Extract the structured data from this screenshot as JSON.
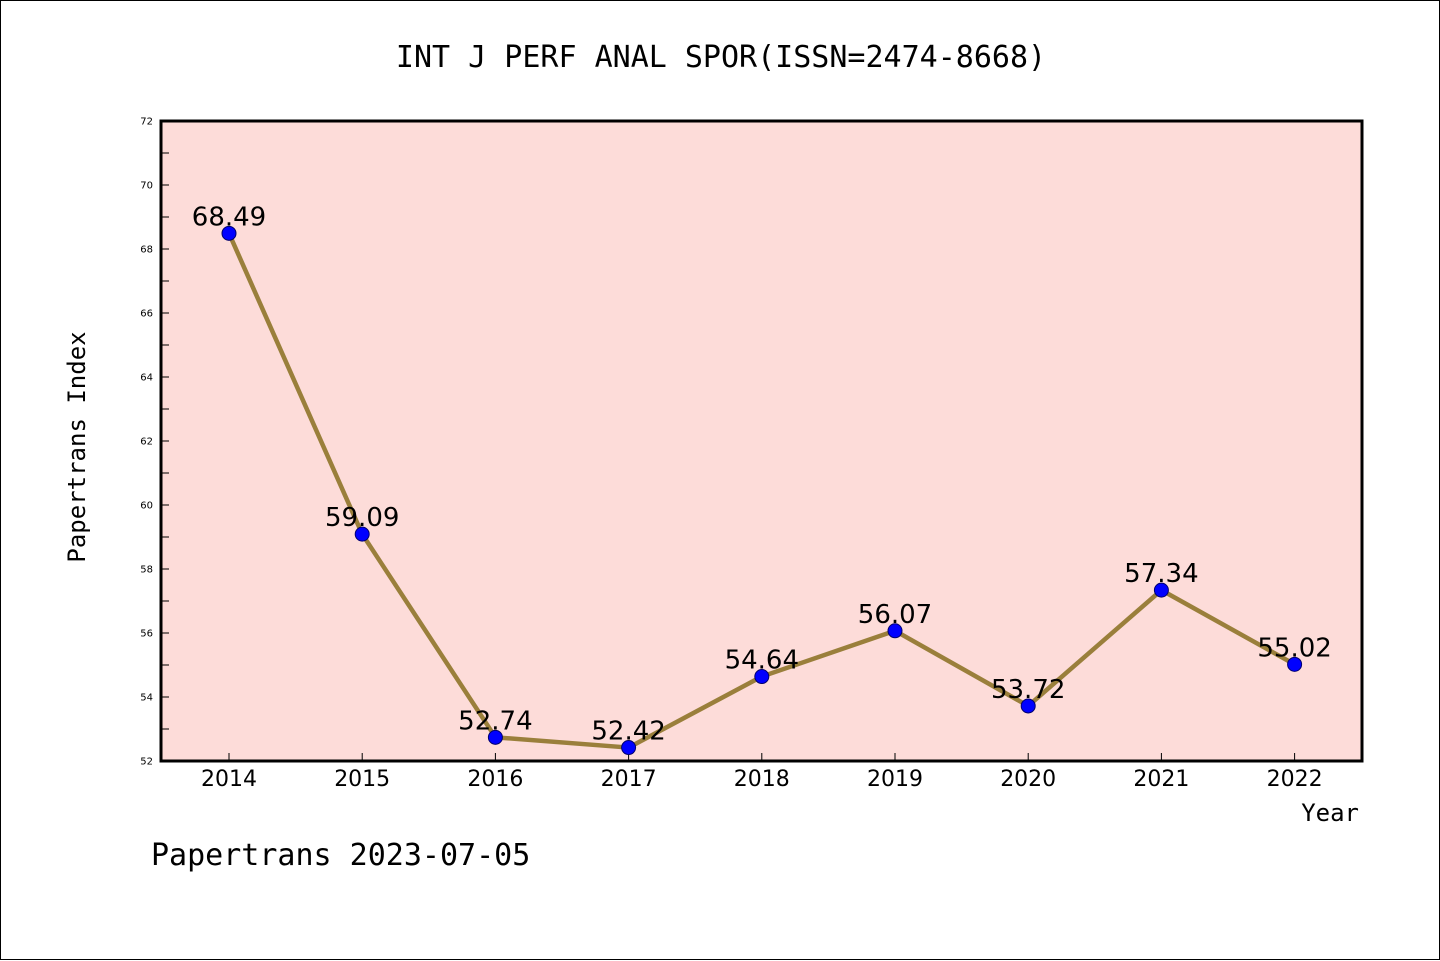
{
  "chart_data": {
    "type": "line",
    "title": "INT J PERF ANAL SPOR(ISSN=2474-8668)",
    "xlabel": "Year",
    "ylabel": "Papertrans Index",
    "categories": [
      "2014",
      "2015",
      "2016",
      "2017",
      "2018",
      "2019",
      "2020",
      "2021",
      "2022"
    ],
    "values": [
      68.49,
      59.09,
      52.74,
      52.42,
      54.64,
      56.07,
      53.72,
      57.34,
      55.02
    ],
    "data_labels": [
      "68.49",
      "59.09",
      "52.74",
      "52.42",
      "54.64",
      "56.07",
      "53.72",
      "57.34",
      "55.02"
    ],
    "ylim": [
      52,
      72
    ],
    "yticks": [
      52,
      54,
      56,
      58,
      60,
      62,
      64,
      66,
      68,
      70,
      72
    ],
    "ytick_labels": [
      "52",
      "54",
      "56",
      "58",
      "60",
      "62",
      "64",
      "66",
      "68",
      "70",
      "72"
    ],
    "grid": false,
    "colors": {
      "plot_background": "#fddcd9",
      "line": "#9a7f3b",
      "marker": "#0000ff",
      "marker_edge": "#00006e"
    }
  },
  "footer": "Papertrans 2023-07-05"
}
